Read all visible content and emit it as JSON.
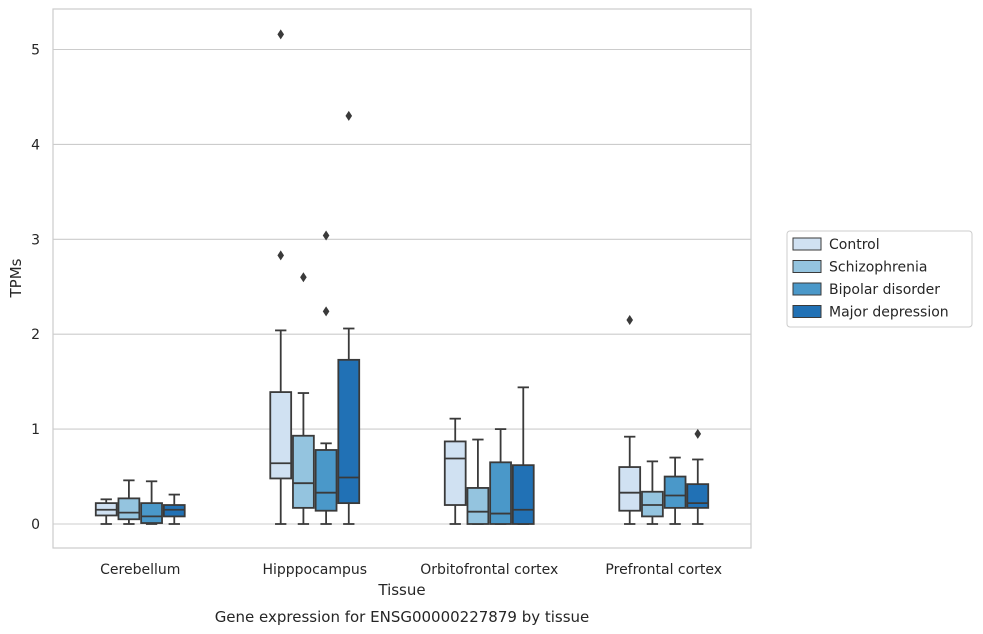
{
  "chart_data": {
    "type": "boxplot",
    "title": "",
    "caption": "Gene expression for ENSG00000227879 by tissue",
    "xlabel": "Tissue",
    "ylabel": "TPMs",
    "ylim": [
      -0.25,
      5.42
    ],
    "yticks": [
      0,
      1,
      2,
      3,
      4,
      5
    ],
    "grid": "horizontal",
    "legend_position": "right",
    "categories": [
      "Cerebellum",
      "Hipppocampus",
      "Orbitofrontal cortex",
      "Prefrontal cortex"
    ],
    "series": [
      {
        "name": "Control",
        "color": "#d0e1f2",
        "boxes": [
          {
            "whislo": 0.0,
            "q1": 0.09,
            "med": 0.15,
            "q3": 0.22,
            "whishi": 0.26,
            "fliers": []
          },
          {
            "whislo": 0.0,
            "q1": 0.48,
            "med": 0.64,
            "q3": 1.39,
            "whishi": 2.04,
            "fliers": [
              2.83,
              5.16
            ]
          },
          {
            "whislo": 0.0,
            "q1": 0.2,
            "med": 0.69,
            "q3": 0.87,
            "whishi": 1.11,
            "fliers": []
          },
          {
            "whislo": 0.0,
            "q1": 0.14,
            "med": 0.33,
            "q3": 0.6,
            "whishi": 0.92,
            "fliers": [
              2.15
            ]
          }
        ]
      },
      {
        "name": "Schizophrenia",
        "color": "#94c4df",
        "boxes": [
          {
            "whislo": 0.0,
            "q1": 0.05,
            "med": 0.12,
            "q3": 0.27,
            "whishi": 0.46,
            "fliers": []
          },
          {
            "whislo": 0.0,
            "q1": 0.17,
            "med": 0.43,
            "q3": 0.93,
            "whishi": 1.38,
            "fliers": [
              2.6
            ]
          },
          {
            "whislo": 0.0,
            "q1": 0.0,
            "med": 0.13,
            "q3": 0.38,
            "whishi": 0.89,
            "fliers": []
          },
          {
            "whislo": 0.0,
            "q1": 0.08,
            "med": 0.2,
            "q3": 0.34,
            "whishi": 0.66,
            "fliers": []
          }
        ]
      },
      {
        "name": "Bipolar disorder",
        "color": "#4a98c9",
        "boxes": [
          {
            "whislo": 0.0,
            "q1": 0.01,
            "med": 0.08,
            "q3": 0.22,
            "whishi": 0.45,
            "fliers": []
          },
          {
            "whislo": 0.0,
            "q1": 0.14,
            "med": 0.33,
            "q3": 0.78,
            "whishi": 0.85,
            "fliers": [
              2.24,
              3.04
            ]
          },
          {
            "whislo": 0.0,
            "q1": 0.0,
            "med": 0.11,
            "q3": 0.65,
            "whishi": 1.0,
            "fliers": []
          },
          {
            "whislo": 0.0,
            "q1": 0.17,
            "med": 0.3,
            "q3": 0.5,
            "whishi": 0.7,
            "fliers": []
          }
        ]
      },
      {
        "name": "Major depression",
        "color": "#2171b5",
        "boxes": [
          {
            "whislo": 0.0,
            "q1": 0.08,
            "med": 0.15,
            "q3": 0.2,
            "whishi": 0.31,
            "fliers": []
          },
          {
            "whislo": 0.0,
            "q1": 0.22,
            "med": 0.49,
            "q3": 1.73,
            "whishi": 2.06,
            "fliers": [
              4.3
            ]
          },
          {
            "whislo": 0.0,
            "q1": 0.0,
            "med": 0.15,
            "q3": 0.62,
            "whishi": 1.44,
            "fliers": []
          },
          {
            "whislo": 0.0,
            "q1": 0.17,
            "med": 0.22,
            "q3": 0.42,
            "whishi": 0.68,
            "fliers": [
              0.95
            ]
          }
        ]
      }
    ]
  }
}
